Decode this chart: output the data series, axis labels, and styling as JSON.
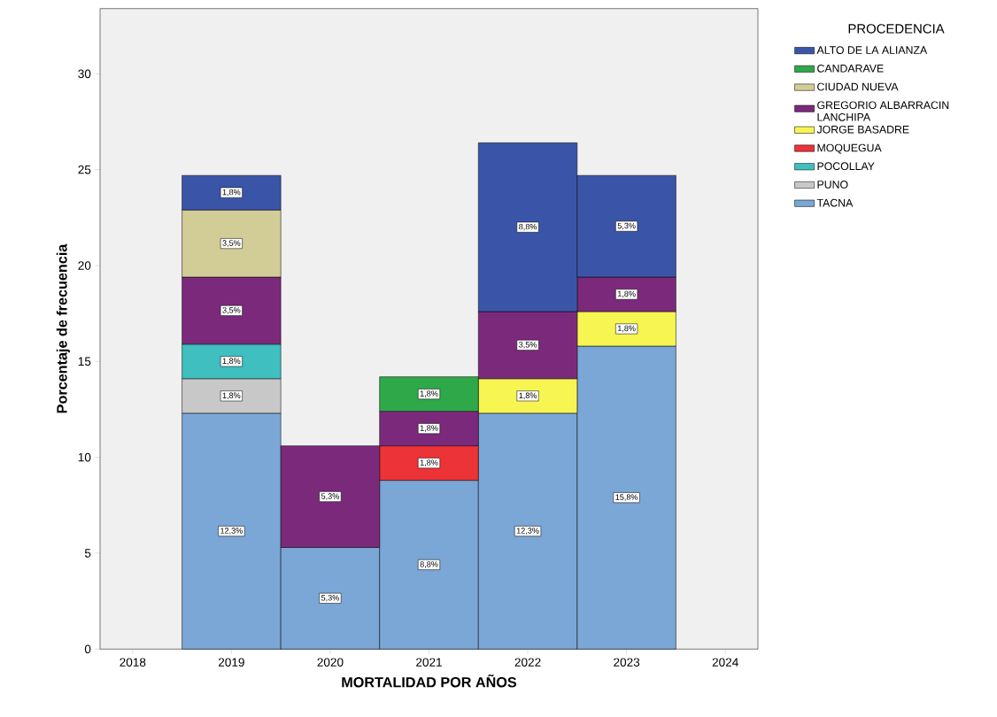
{
  "chart_data": {
    "type": "bar",
    "stacked": true,
    "xlabel": "MORTALIDAD POR AÑOS",
    "ylabel": "Porcentaje de frecuencia",
    "legend_title": "PROCEDENCIA",
    "legend": "right",
    "x": [
      2019,
      2020,
      2021,
      2022,
      2023
    ],
    "xlim": [
      2017.67,
      2024.33
    ],
    "xticks": [
      2018,
      2019,
      2020,
      2021,
      2022,
      2023,
      2024
    ],
    "ylim": [
      0,
      33.4
    ],
    "yticks": [
      0,
      5,
      10,
      15,
      20,
      25,
      30
    ],
    "series": [
      {
        "name": "TACNA",
        "color": "#7aa7d6",
        "values": [
          12.3,
          5.3,
          8.8,
          12.3,
          15.8
        ],
        "value_labels": [
          "12,3%",
          "5,3%",
          "8,8%",
          "12,3%",
          "15,8%"
        ]
      },
      {
        "name": "PUNO",
        "color": "#c8c8c8",
        "values": [
          1.8,
          null,
          null,
          null,
          null
        ],
        "value_labels": [
          "1,8%",
          null,
          null,
          null,
          null
        ]
      },
      {
        "name": "POCOLLAY",
        "color": "#3fbfbf",
        "values": [
          1.8,
          null,
          null,
          null,
          null
        ],
        "value_labels": [
          "1,8%",
          null,
          null,
          null,
          null
        ]
      },
      {
        "name": "MOQUEGUA",
        "color": "#ec3338",
        "values": [
          null,
          null,
          1.8,
          null,
          null
        ],
        "value_labels": [
          null,
          null,
          "1,8%",
          null,
          null
        ]
      },
      {
        "name": "JORGE BASADRE",
        "color": "#f7f551",
        "values": [
          null,
          null,
          null,
          1.8,
          1.8
        ],
        "value_labels": [
          null,
          null,
          null,
          "1,8%",
          "1,8%"
        ]
      },
      {
        "name": "GREGORIO ALBARRACIN LANCHIPA",
        "color": "#7b2a7b",
        "values": [
          3.5,
          5.3,
          1.8,
          3.5,
          1.8
        ],
        "value_labels": [
          "3,5%",
          "5,3%",
          "1,8%",
          "3,5%",
          "1,8%"
        ]
      },
      {
        "name": "CIUDAD NUEVA",
        "color": "#d2cc96",
        "values": [
          3.5,
          null,
          null,
          null,
          null
        ],
        "value_labels": [
          "3,5%",
          null,
          null,
          null,
          null
        ]
      },
      {
        "name": "CANDARAVE",
        "color": "#2fa84a",
        "values": [
          null,
          null,
          1.8,
          null,
          null
        ],
        "value_labels": [
          null,
          null,
          "1,8%",
          null,
          null
        ]
      },
      {
        "name": "ALTO DE LA ALIANZA",
        "color": "#3a55a8",
        "values": [
          1.8,
          null,
          null,
          8.8,
          5.3
        ],
        "value_labels": [
          "1,8%",
          null,
          null,
          "8,8%",
          "5,3%"
        ]
      }
    ]
  }
}
